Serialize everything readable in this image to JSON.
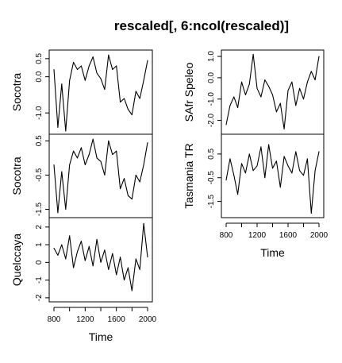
{
  "title": "rescaled[, 6:ncol(rescaled)]",
  "chart_data": [
    {
      "type": "line",
      "column": 1,
      "row": 1,
      "ylabel": "Socotra",
      "ylim": [
        -1.5,
        0.65
      ],
      "yticks": [
        0.5,
        0.0,
        -1.0
      ],
      "ytick_labels": [
        "0.5",
        "0.0",
        "-1.0"
      ],
      "show_xaxis": false,
      "x": [
        800,
        850,
        900,
        950,
        1000,
        1050,
        1100,
        1150,
        1200,
        1250,
        1300,
        1350,
        1400,
        1450,
        1500,
        1550,
        1600,
        1650,
        1700,
        1750,
        1800,
        1850,
        1900,
        1950,
        2000
      ],
      "y": [
        0.2,
        -1.4,
        -0.2,
        -1.5,
        -0.1,
        0.4,
        0.2,
        0.3,
        -0.1,
        0.3,
        0.55,
        0.1,
        -0.05,
        -0.35,
        0.6,
        0.2,
        0.3,
        -0.7,
        -0.6,
        -0.9,
        -1.05,
        -0.4,
        -0.6,
        -0.1,
        0.45
      ],
      "xlim": [
        800,
        2000
      ]
    },
    {
      "type": "line",
      "column": 1,
      "row": 2,
      "ylabel": "Socotra",
      "ylim": [
        -1.65,
        0.6
      ],
      "yticks": [
        0.5,
        -0.5,
        -1.5
      ],
      "ytick_labels": [
        "0.5",
        "-0.5",
        "-1.5"
      ],
      "show_xaxis": false,
      "x": [
        800,
        850,
        900,
        950,
        1000,
        1050,
        1100,
        1150,
        1200,
        1250,
        1300,
        1350,
        1400,
        1450,
        1500,
        1550,
        1600,
        1650,
        1700,
        1750,
        1800,
        1850,
        1900,
        1950,
        2000
      ],
      "y": [
        -0.2,
        -1.6,
        -0.4,
        -1.5,
        -0.2,
        0.2,
        0.0,
        0.3,
        -0.2,
        0.1,
        0.55,
        0.0,
        -0.1,
        -0.5,
        0.5,
        0.1,
        0.2,
        -0.9,
        -0.6,
        -1.1,
        -1.2,
        -0.5,
        -0.7,
        -0.2,
        0.45
      ],
      "xlim": [
        800,
        2000
      ]
    },
    {
      "type": "line",
      "column": 1,
      "row": 3,
      "ylabel": "Quelccaya",
      "ylim": [
        -2.05,
        2.35
      ],
      "yticks": [
        2,
        1,
        0,
        -1,
        -2
      ],
      "ytick_labels": [
        "2",
        "1",
        "0",
        "-1",
        "-2"
      ],
      "show_xaxis": true,
      "xticks": [
        800,
        1200,
        1600,
        2000
      ],
      "xtick_labels": [
        "800",
        "1200",
        "1600",
        "2000"
      ],
      "xlabel": "Time",
      "x": [
        800,
        850,
        900,
        950,
        1000,
        1050,
        1100,
        1150,
        1200,
        1250,
        1300,
        1350,
        1400,
        1450,
        1500,
        1550,
        1600,
        1650,
        1700,
        1750,
        1800,
        1850,
        1900,
        1950,
        2000
      ],
      "y": [
        0.8,
        0.4,
        1.0,
        0.2,
        1.5,
        -0.3,
        0.6,
        1.2,
        0.1,
        0.9,
        -0.2,
        1.3,
        0.0,
        0.7,
        -0.4,
        0.5,
        -0.7,
        0.3,
        -1.0,
        -0.3,
        -1.6,
        0.2,
        -0.4,
        2.2,
        0.3
      ],
      "xlim": [
        800,
        2000
      ]
    },
    {
      "type": "line",
      "column": 2,
      "row": 1,
      "ylabel": "SAfr Speleo",
      "ylim": [
        -2.5,
        1.15
      ],
      "yticks": [
        1.0,
        0.0,
        -1.0,
        -2.0
      ],
      "ytick_labels": [
        "1.0",
        "0.0",
        "-1.0",
        "-2.0"
      ],
      "show_xaxis": false,
      "x": [
        800,
        850,
        900,
        950,
        1000,
        1050,
        1100,
        1150,
        1200,
        1250,
        1300,
        1350,
        1400,
        1450,
        1500,
        1550,
        1600,
        1650,
        1700,
        1750,
        1800,
        1850,
        1900,
        1950,
        2000
      ],
      "y": [
        -2.2,
        -1.3,
        -0.9,
        -1.4,
        -0.2,
        -0.8,
        -0.3,
        1.1,
        -0.5,
        -0.9,
        -0.1,
        -0.4,
        -0.8,
        -1.6,
        -1.2,
        -2.4,
        -0.6,
        -0.2,
        -1.3,
        -0.5,
        -1.0,
        -0.2,
        0.3,
        -0.1,
        1.0
      ],
      "xlim": [
        800,
        2000
      ]
    },
    {
      "type": "line",
      "column": 2,
      "row": 2,
      "ylabel": "Tasmania TR",
      "ylim": [
        -2.05,
        1.2
      ],
      "yticks": [
        0.5,
        -0.5,
        -1.5
      ],
      "ytick_labels": [
        "0.5",
        "-0.5",
        "-1.5"
      ],
      "show_xaxis": true,
      "xticks": [
        800,
        1200,
        1600,
        2000
      ],
      "xtick_labels": [
        "800",
        "1200",
        "1600",
        "2000"
      ],
      "xlabel": "Time",
      "x": [
        800,
        850,
        900,
        950,
        1000,
        1050,
        1100,
        1150,
        1200,
        1250,
        1300,
        1350,
        1400,
        1450,
        1500,
        1550,
        1600,
        1650,
        1700,
        1750,
        1800,
        1850,
        1900,
        1950,
        2000
      ],
      "y": [
        -0.6,
        0.3,
        -0.4,
        -1.2,
        0.1,
        -0.3,
        0.5,
        -0.2,
        0.0,
        0.8,
        -0.5,
        0.9,
        -0.1,
        0.2,
        -0.9,
        0.4,
        0.0,
        -0.3,
        0.6,
        -0.2,
        -0.4,
        0.3,
        -2.0,
        -0.2,
        0.6
      ],
      "xlim": [
        800,
        2000
      ]
    }
  ]
}
